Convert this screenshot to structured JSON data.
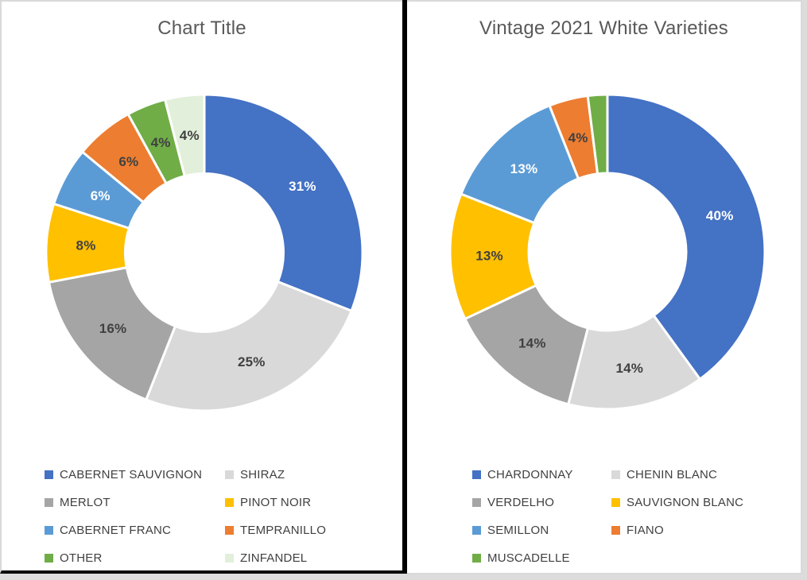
{
  "page": {
    "divider_color": "#000000",
    "panel_background": "#ffffff",
    "panel_border_color": "#d9d9d9",
    "title_color": "#595959",
    "legend_text_color": "#404040",
    "data_label_dark_color": "#404040",
    "data_label_light_color": "#ffffff"
  },
  "chart_data": [
    {
      "type": "pie",
      "subtype": "donut",
      "title": "Chart Title",
      "categories": [
        "CABERNET SAUVIGNON",
        "SHIRAZ",
        "MERLOT",
        "PINOT NOIR",
        "CABERNET FRANC",
        "TEMPRANILLO",
        "OTHER",
        "ZINFANDEL"
      ],
      "values": [
        31,
        25,
        16,
        8,
        6,
        6,
        4,
        4
      ],
      "data_labels": [
        "31%",
        "25%",
        "16%",
        "8%",
        "6%",
        "6%",
        "4%",
        "4%"
      ],
      "colors": [
        "#4472C4",
        "#D9D9D9",
        "#A5A5A5",
        "#FFC000",
        "#5B9BD5",
        "#ED7D31",
        "#70AD47",
        "#E2EFDA"
      ],
      "label_colors": [
        "#FFFFFF",
        "#404040",
        "#404040",
        "#404040",
        "#FFFFFF",
        "#404040",
        "#404040",
        "#404040"
      ],
      "start_angle": 0,
      "direction": "clockwise",
      "hole_ratio": 0.5,
      "legend_position": "bottom",
      "legend_columns": 2
    },
    {
      "type": "pie",
      "subtype": "donut",
      "title": "Vintage 2021 White Varieties",
      "categories": [
        "CHARDONNAY",
        "CHENIN BLANC",
        "VERDELHO",
        "SAUVIGNON BLANC",
        "SEMILLON",
        "FIANO",
        "MUSCADELLE"
      ],
      "values": [
        40,
        14,
        14,
        13,
        13,
        4,
        2
      ],
      "data_labels": [
        "40%",
        "14%",
        "14%",
        "13%",
        "13%",
        "4%",
        ""
      ],
      "colors": [
        "#4472C4",
        "#D9D9D9",
        "#A5A5A5",
        "#FFC000",
        "#5B9BD5",
        "#ED7D31",
        "#70AD47"
      ],
      "label_colors": [
        "#FFFFFF",
        "#404040",
        "#404040",
        "#404040",
        "#FFFFFF",
        "#404040",
        "#404040"
      ],
      "start_angle": 0,
      "direction": "clockwise",
      "hole_ratio": 0.5,
      "legend_position": "bottom",
      "legend_columns": 2
    }
  ]
}
